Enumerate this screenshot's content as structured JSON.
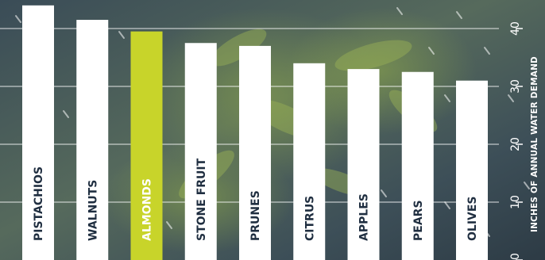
{
  "chart_data": {
    "type": "bar",
    "orientation": "vertical",
    "categories": [
      "PISTACHIOS",
      "WALNUTS",
      "ALMONDS",
      "STONE FRUIT",
      "PRUNES",
      "CITRUS",
      "APPLES",
      "PEARS",
      "OLIVES"
    ],
    "values": [
      44,
      41.5,
      39.5,
      37.5,
      37,
      34,
      33,
      32.5,
      31
    ],
    "highlight": "ALMONDS",
    "ylabel": "INCHES OF ANNUAL WATER DEMAND",
    "yticks": [
      0,
      10,
      20,
      30,
      40
    ],
    "ylim": [
      0,
      44
    ],
    "grid": true,
    "bar_color": "#ffffff",
    "highlight_color": "#c8d42a",
    "label_color": "#1f2e40",
    "highlight_label_color": "#ffffff"
  }
}
